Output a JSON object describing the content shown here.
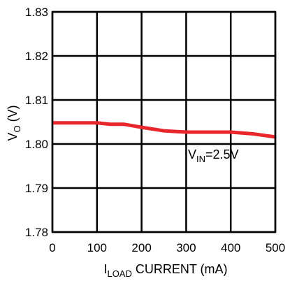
{
  "chart_data": {
    "type": "line",
    "title": "",
    "xlabel": {
      "main": "I",
      "sub": "LOAD",
      "rest": " CURRENT (mA)"
    },
    "ylabel": {
      "main": "V",
      "sub": "O",
      "rest": " (V)"
    },
    "xlim": [
      0,
      500
    ],
    "ylim": [
      1.78,
      1.83
    ],
    "x_ticks": [
      0,
      100,
      200,
      300,
      400,
      500
    ],
    "x_tick_labels": [
      "0",
      "100",
      "200",
      "300",
      "400",
      "500"
    ],
    "y_ticks": [
      1.78,
      1.79,
      1.8,
      1.81,
      1.82,
      1.83
    ],
    "y_tick_labels": [
      "1.78",
      "1.79",
      "1.80",
      "1.81",
      "1.82",
      "1.83"
    ],
    "grid": true,
    "series": [
      {
        "color": "#e8262b",
        "x": [
          0,
          50,
          100,
          130,
          160,
          200,
          250,
          300,
          350,
          400,
          450,
          500
        ],
        "y": [
          1.8048,
          1.8048,
          1.8048,
          1.8045,
          1.8045,
          1.8038,
          1.803,
          1.8027,
          1.8027,
          1.8027,
          1.8023,
          1.8016
        ]
      }
    ],
    "annotation": {
      "main": "V",
      "sub": "IN",
      "rest": "=2.5V"
    }
  }
}
